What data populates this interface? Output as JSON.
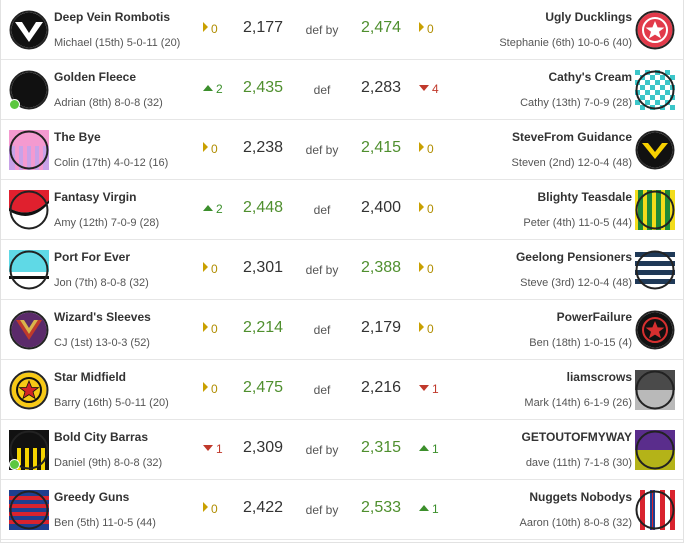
{
  "matchups": [
    {
      "left": {
        "team": "Deep Vein Rombotis",
        "owner_record": "Michael (15th) 5-0-11 (20)",
        "score": "2,177",
        "move": "0",
        "dir": "same",
        "logo": "black-v"
      },
      "result": "def by",
      "right": {
        "team": "Ugly Ducklings",
        "owner_record": "Stephanie (6th) 10-0-6 (40)",
        "score": "2,474",
        "move": "0",
        "dir": "same",
        "logo": "red-star"
      }
    },
    {
      "left": {
        "team": "Golden Fleece",
        "owner_record": "Adrian (8th) 8-0-8 (32)",
        "score": "2,435",
        "move": "2",
        "dir": "up",
        "logo": "black-plain",
        "online": true
      },
      "result": "def",
      "right": {
        "team": "Cathy's Cream",
        "owner_record": "Cathy (13th) 7-0-9 (28)",
        "score": "2,283",
        "move": "4",
        "dir": "down",
        "logo": "teal-check"
      }
    },
    {
      "left": {
        "team": "The Bye",
        "owner_record": "Colin (17th) 4-0-12 (16)",
        "score": "2,238",
        "move": "0",
        "dir": "same",
        "logo": "pink-lilac"
      },
      "result": "def by",
      "right": {
        "team": "SteveFrom Guidance",
        "owner_record": "Steven (2nd) 12-0-4 (48)",
        "score": "2,415",
        "move": "0",
        "dir": "same",
        "logo": "black-yellow-v"
      }
    },
    {
      "left": {
        "team": "Fantasy Virgin",
        "owner_record": "Amy (12th) 7-0-9 (28)",
        "score": "2,448",
        "move": "2",
        "dir": "up",
        "logo": "red-white-swoosh"
      },
      "result": "def",
      "right": {
        "team": "Blighty Teasdale",
        "owner_record": "Peter (4th) 11-0-5 (44)",
        "score": "2,400",
        "move": "0",
        "dir": "same",
        "logo": "green-gold-stripes"
      }
    },
    {
      "left": {
        "team": "Port For Ever",
        "owner_record": "Jon (7th) 8-0-8 (32)",
        "score": "2,301",
        "move": "0",
        "dir": "same",
        "logo": "teal-black-white"
      },
      "result": "def by",
      "right": {
        "team": "Geelong Pensioners",
        "owner_record": "Steve (3rd) 12-0-4 (48)",
        "score": "2,388",
        "move": "0",
        "dir": "same",
        "logo": "navy-hoops"
      }
    },
    {
      "left": {
        "team": "Wizard's Sleeves",
        "owner_record": "CJ (1st) 13-0-3 (52)",
        "score": "2,214",
        "move": "0",
        "dir": "same",
        "logo": "purple-red-v"
      },
      "result": "def",
      "right": {
        "team": "PowerFailure",
        "owner_record": "Ben (18th) 1-0-15 (4)",
        "score": "2,179",
        "move": "0",
        "dir": "same",
        "logo": "black-red-star"
      }
    },
    {
      "left": {
        "team": "Star Midfield",
        "owner_record": "Barry (16th) 5-0-11 (20)",
        "score": "2,475",
        "move": "0",
        "dir": "same",
        "logo": "gold-red-star"
      },
      "result": "def",
      "right": {
        "team": "liamscrows",
        "owner_record": "Mark (14th) 6-1-9 (26)",
        "score": "2,216",
        "move": "1",
        "dir": "down",
        "logo": "grey-split"
      }
    },
    {
      "left": {
        "team": "Bold City Barras",
        "owner_record": "Daniel (9th) 8-0-8 (32)",
        "score": "2,309",
        "move": "1",
        "dir": "down",
        "logo": "black-yellow-stripes",
        "online": true
      },
      "result": "def by",
      "right": {
        "team": "GETOUTOFMYWAY",
        "owner_record": "dave (11th) 7-1-8 (30)",
        "score": "2,315",
        "move": "1",
        "dir": "up",
        "logo": "purple-olive"
      }
    },
    {
      "left": {
        "team": "Greedy Guns",
        "owner_record": "Ben (5th) 11-0-5 (44)",
        "score": "2,422",
        "move": "0",
        "dir": "same",
        "logo": "navy-red-hoops"
      },
      "result": "def by",
      "right": {
        "team": "Nuggets Nobodys",
        "owner_record": "Aaron (10th) 8-0-8 (32)",
        "score": "2,533",
        "move": "1",
        "dir": "up",
        "logo": "red-white-stripes"
      }
    }
  ]
}
